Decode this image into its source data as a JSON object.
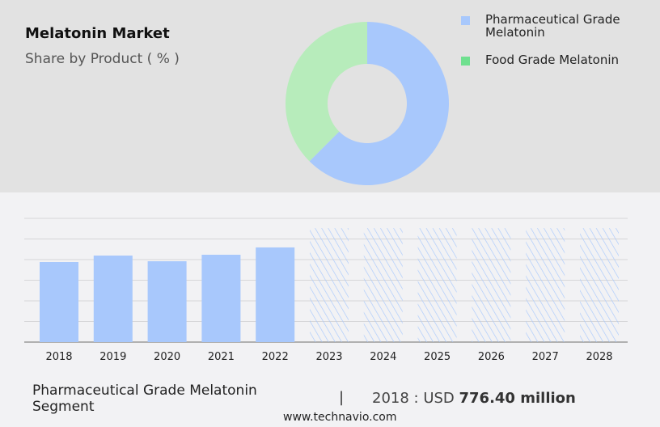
{
  "title": "Melatonin Market",
  "subtitle": "Share by Product ( % )",
  "colors": {
    "pharma": "#a8c8fc",
    "food_slice": "#b7ecbb",
    "food_legend": "#6fe08f",
    "grid": "#d6d6d8",
    "axis": "#999999"
  },
  "chart_data": [
    {
      "type": "pie",
      "donut": true,
      "slices": [
        {
          "name": "Pharmaceutical Grade Melatonin",
          "value": 62.5
        },
        {
          "name": "Food Grade Melatonin",
          "value": 37.5
        }
      ],
      "legend_position": "right"
    },
    {
      "type": "bar",
      "categories": [
        "2018",
        "2019",
        "2020",
        "2021",
        "2022",
        "2023",
        "2024",
        "2025",
        "2026",
        "2027",
        "2028"
      ],
      "values": [
        776.4,
        839,
        784,
        847,
        918,
        null,
        null,
        null,
        null,
        null,
        null
      ],
      "forecast_categories": [
        "2023",
        "2024",
        "2025",
        "2026",
        "2027",
        "2028"
      ],
      "forecast_style": "hatched",
      "forecast_placeholder": 1105,
      "ylim": [
        0,
        1200
      ],
      "ytick_step": 200,
      "grid": true,
      "ytick_labels_shown": false
    }
  ],
  "footer": {
    "segment": "Pharmaceutical Grade Melatonin Segment",
    "separator": "|",
    "year_prefix": "2018 : USD ",
    "value": "776.40 million"
  },
  "source": "www.technavio.com"
}
